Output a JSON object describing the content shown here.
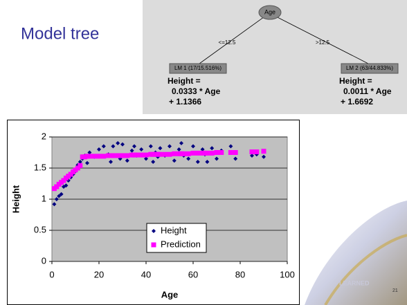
{
  "slide": {
    "title": "Model tree",
    "page_number": "21",
    "logo_text": "LEARNED"
  },
  "tree": {
    "root": "Age",
    "edges": [
      "<=12.5",
      ">12.5"
    ],
    "leaves": [
      {
        "label": "LM 1 (17/15.516%)",
        "lines": [
          "Height =",
          "0.0333 * Age",
          "+ 1.1366"
        ]
      },
      {
        "label": "LM 2 (63/44.833%)",
        "lines": [
          "Height =",
          "0.0011 * Age",
          "+ 1.6692"
        ]
      }
    ]
  },
  "chart_data": {
    "type": "scatter",
    "x_label": "Age",
    "y_label": "Height",
    "xlim": [
      0,
      100
    ],
    "xticks": [
      0,
      20,
      40,
      60,
      80,
      100
    ],
    "ylim": [
      0,
      2
    ],
    "yticks": [
      0,
      0.5,
      1,
      1.5,
      2
    ],
    "grid": true,
    "legend": "bottom-center",
    "x": [
      1,
      2,
      3,
      4,
      5,
      6,
      7,
      8,
      9,
      10,
      11,
      12,
      13,
      14,
      15,
      16,
      18,
      20,
      22,
      24,
      25,
      26,
      28,
      29,
      30,
      32,
      34,
      35,
      36,
      38,
      40,
      42,
      43,
      44,
      45,
      46,
      48,
      50,
      52,
      54,
      55,
      56,
      58,
      60,
      62,
      64,
      65,
      66,
      68,
      70,
      72,
      76,
      78,
      85,
      87,
      90
    ],
    "series": [
      {
        "name": "Height",
        "color": "#000080",
        "marker": "diamond",
        "values": [
          0.92,
          1.0,
          1.05,
          1.08,
          1.2,
          1.22,
          1.3,
          1.35,
          1.4,
          1.45,
          1.55,
          1.6,
          1.65,
          1.7,
          1.58,
          1.75,
          1.68,
          1.8,
          1.85,
          1.72,
          1.6,
          1.85,
          1.9,
          1.65,
          1.88,
          1.62,
          1.78,
          1.85,
          1.7,
          1.8,
          1.65,
          1.85,
          1.6,
          1.75,
          1.68,
          1.82,
          1.7,
          1.85,
          1.62,
          1.8,
          1.9,
          1.7,
          1.65,
          1.85,
          1.6,
          1.8,
          1.72,
          1.6,
          1.82,
          1.65,
          1.78,
          1.85,
          1.65,
          1.7,
          1.72,
          1.68
        ]
      },
      {
        "name": "Prediction",
        "color": "#ff00ff",
        "marker": "square",
        "values": [
          1.17,
          1.2,
          1.24,
          1.27,
          1.3,
          1.34,
          1.37,
          1.4,
          1.44,
          1.47,
          1.5,
          1.54,
          1.68,
          1.68,
          1.69,
          1.69,
          1.69,
          1.69,
          1.69,
          1.7,
          1.7,
          1.7,
          1.7,
          1.7,
          1.7,
          1.7,
          1.71,
          1.71,
          1.71,
          1.71,
          1.71,
          1.72,
          1.72,
          1.72,
          1.72,
          1.72,
          1.72,
          1.72,
          1.73,
          1.73,
          1.73,
          1.73,
          1.73,
          1.74,
          1.74,
          1.74,
          1.74,
          1.74,
          1.74,
          1.75,
          1.75,
          1.75,
          1.75,
          1.76,
          1.76,
          1.77
        ]
      }
    ]
  }
}
